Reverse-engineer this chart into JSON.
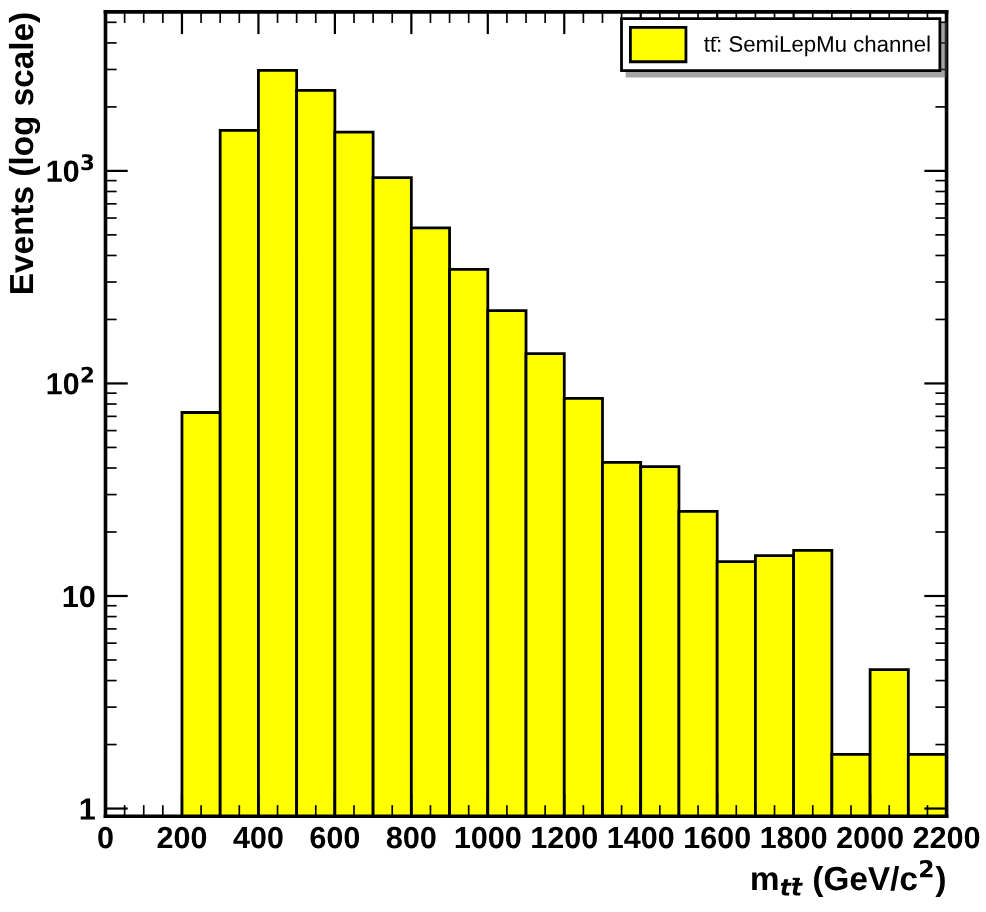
{
  "chart_data": {
    "type": "histogram",
    "xlabel": "m$_{tt̄}$ (GeV/c$^{2}$)",
    "ylabel": "Events (log scale)",
    "bins": [
      0,
      100,
      200,
      300,
      400,
      500,
      600,
      700,
      800,
      900,
      1000,
      1100,
      1200,
      1300,
      1400,
      1500,
      1600,
      1700,
      1800,
      1900,
      2000,
      2100,
      2200
    ],
    "series": [
      {
        "name": "tt̄: SemiLepMu channel",
        "color": "#ffff00",
        "values": [
          null,
          null,
          73,
          1550,
          2970,
          2390,
          1520,
          930,
          540,
          344,
          220,
          138,
          85,
          42.5,
          40.6,
          25,
          14.5,
          15.5,
          16.4,
          1.8,
          4.5,
          1.8
        ]
      }
    ],
    "log": "y",
    "xlim": [
      0,
      2200
    ],
    "ylim": [
      0.92,
      5600
    ],
    "xticks": [
      0,
      200,
      400,
      600,
      800,
      1000,
      1200,
      1400,
      1600,
      1800,
      2000,
      2200
    ],
    "yticks": [
      1,
      10,
      {
        "value": 100,
        "label": "10$^{2}$"
      },
      {
        "value": 1000,
        "label": "10$^{3}$"
      }
    ],
    "grid": false,
    "legend": "top right"
  }
}
